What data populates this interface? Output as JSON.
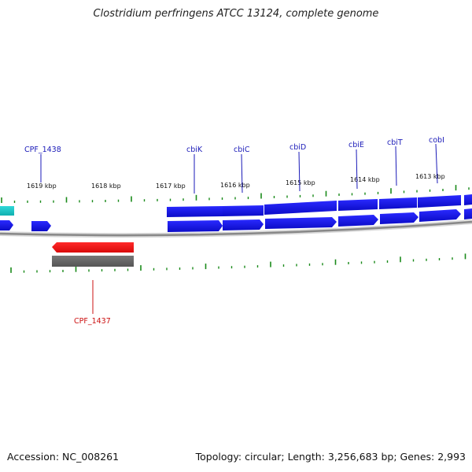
{
  "title": "Clostridium perfringens ATCC 13124, complete genome",
  "footer": {
    "accession": "Accession: NC_008261",
    "summary": "Topology: circular; Length: 3,256,683 bp; Genes: 2,993"
  },
  "scale_labels": [
    "1619 kbp",
    "1618 kbp",
    "1617 kbp",
    "1616 kbp",
    "1615 kbp",
    "1614 kbp",
    "1613 kbp"
  ],
  "gene_labels_top": [
    "CPF_1438",
    "cbiK",
    "cbiC",
    "cbiD",
    "cbiE",
    "cbiT",
    "cobI"
  ],
  "gene_labels_bottom": [
    "CPF_1437"
  ],
  "colors": {
    "forward_gene": "#1414e6",
    "reverse_gene": "#ee1111",
    "cds_other": "#18c8c8",
    "tick": "#1a8a1a",
    "backbone": "#888888",
    "label_blue": "#1a1ab8",
    "label_red": "#cc1010"
  }
}
